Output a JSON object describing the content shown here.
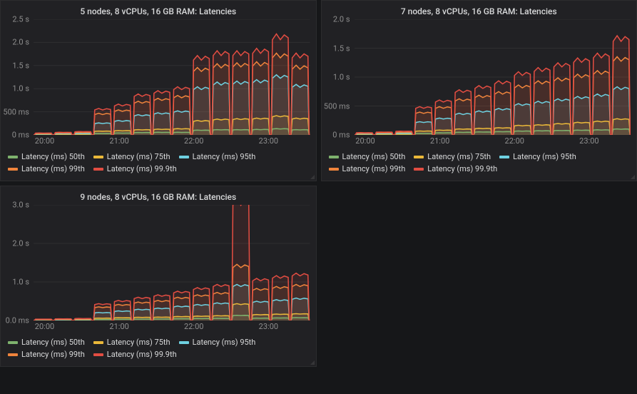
{
  "colors": {
    "bg": "#161719",
    "panel_bg": "#212124",
    "grid": "#2f2f31",
    "text": "#d8d9da",
    "muted": "#8e8e8e",
    "series": {
      "p50": "#7eb26d",
      "p75": "#eab839",
      "p95": "#6ed0e0",
      "p99": "#ef843c",
      "p999": "#e24d42"
    }
  },
  "legend_labels": {
    "p50": "Latency (ms) 50th",
    "p75": "Latency (ms) 75th",
    "p95": "Latency (ms) 95th",
    "p99": "Latency (ms) 99th",
    "p999": "Latency (ms) 99.9th"
  },
  "fonts": {
    "title_pt": 12,
    "axis_pt": 11,
    "legend_pt": 11
  },
  "x_axis": {
    "tick_labels": [
      "20:00",
      "21:00",
      "22:00",
      "23:00"
    ],
    "tick_positions_pct": [
      4,
      31,
      58,
      85
    ]
  },
  "panels": [
    {
      "title": "5 nodes, 8 vCPUs, 16 GB RAM: Latencies",
      "ylim": [
        0,
        2500
      ],
      "yticks": [
        {
          "v": 0,
          "label": "0 ms"
        },
        {
          "v": 500,
          "label": "500 ms"
        },
        {
          "v": 1000,
          "label": "1.0 s"
        },
        {
          "v": 1500,
          "label": "1.5 s"
        },
        {
          "v": 2000,
          "label": "2.0 s"
        },
        {
          "v": 2500,
          "label": "2.5 s"
        }
      ],
      "groups": [
        {
          "p50": 5,
          "p75": 10,
          "p95": 20,
          "p99": 30,
          "p999": 40
        },
        {
          "p50": 6,
          "p75": 12,
          "p95": 25,
          "p99": 40,
          "p999": 55
        },
        {
          "p50": 8,
          "p75": 15,
          "p95": 30,
          "p99": 50,
          "p999": 70
        },
        {
          "p50": 30,
          "p75": 80,
          "p95": 250,
          "p99": 450,
          "p999": 550
        },
        {
          "p50": 40,
          "p75": 90,
          "p95": 300,
          "p99": 520,
          "p999": 640
        },
        {
          "p50": 50,
          "p75": 110,
          "p95": 420,
          "p99": 700,
          "p999": 850
        },
        {
          "p50": 55,
          "p75": 120,
          "p95": 460,
          "p99": 760,
          "p999": 920
        },
        {
          "p50": 55,
          "p75": 130,
          "p95": 500,
          "p99": 820,
          "p999": 1000
        },
        {
          "p50": 100,
          "p75": 300,
          "p95": 1000,
          "p99": 1400,
          "p999": 1650
        },
        {
          "p50": 110,
          "p75": 330,
          "p95": 1100,
          "p99": 1480,
          "p999": 1750
        },
        {
          "p50": 110,
          "p75": 340,
          "p95": 1120,
          "p99": 1500,
          "p999": 1750
        },
        {
          "p50": 115,
          "p75": 350,
          "p95": 1150,
          "p99": 1520,
          "p999": 1800
        },
        {
          "p50": 130,
          "p75": 400,
          "p95": 1250,
          "p99": 1700,
          "p999": 2100
        },
        {
          "p50": 110,
          "p75": 350,
          "p95": 1050,
          "p99": 1450,
          "p999": 1700
        }
      ]
    },
    {
      "title": "7 nodes, 8 vCPUs, 16 GB RAM: Latencies",
      "ylim": [
        0,
        2000
      ],
      "yticks": [
        {
          "v": 0,
          "label": "0 ms"
        },
        {
          "v": 500,
          "label": "500 ms"
        },
        {
          "v": 1000,
          "label": "1.0 s"
        },
        {
          "v": 1500,
          "label": "1.5 s"
        },
        {
          "v": 2000,
          "label": "2.0 s"
        }
      ],
      "groups": [
        {
          "p50": 5,
          "p75": 10,
          "p95": 18,
          "p99": 28,
          "p999": 38
        },
        {
          "p50": 6,
          "p75": 12,
          "p95": 22,
          "p99": 35,
          "p999": 48
        },
        {
          "p50": 8,
          "p75": 14,
          "p95": 28,
          "p99": 45,
          "p999": 62
        },
        {
          "p50": 25,
          "p75": 65,
          "p95": 220,
          "p99": 380,
          "p999": 470
        },
        {
          "p50": 35,
          "p75": 80,
          "p95": 280,
          "p99": 470,
          "p999": 580
        },
        {
          "p50": 45,
          "p75": 100,
          "p95": 360,
          "p99": 600,
          "p999": 750
        },
        {
          "p50": 50,
          "p75": 110,
          "p95": 400,
          "p99": 660,
          "p999": 820
        },
        {
          "p50": 55,
          "p75": 120,
          "p95": 440,
          "p99": 720,
          "p999": 900
        },
        {
          "p50": 65,
          "p75": 160,
          "p95": 520,
          "p99": 830,
          "p999": 1050
        },
        {
          "p50": 70,
          "p75": 170,
          "p95": 560,
          "p99": 900,
          "p999": 1120
        },
        {
          "p50": 75,
          "p75": 190,
          "p95": 600,
          "p99": 950,
          "p999": 1200
        },
        {
          "p50": 80,
          "p75": 210,
          "p95": 640,
          "p99": 1010,
          "p999": 1280
        },
        {
          "p50": 85,
          "p75": 230,
          "p95": 680,
          "p99": 1070,
          "p999": 1360
        },
        {
          "p50": 100,
          "p75": 270,
          "p95": 800,
          "p99": 1300,
          "p999": 1650
        }
      ]
    },
    {
      "title": "9 nodes, 8 vCPUs, 16 GB RAM: Latencies",
      "ylim": [
        0,
        3000
      ],
      "yticks": [
        {
          "v": 0,
          "label": "0.0 ms"
        },
        {
          "v": 1000,
          "label": "1.0 s"
        },
        {
          "v": 2000,
          "label": "2.0 s"
        },
        {
          "v": 3000,
          "label": "3.0 s"
        }
      ],
      "groups": [
        {
          "p50": 5,
          "p75": 10,
          "p95": 18,
          "p99": 25,
          "p999": 35
        },
        {
          "p50": 6,
          "p75": 11,
          "p95": 20,
          "p99": 30,
          "p999": 42
        },
        {
          "p50": 7,
          "p75": 13,
          "p95": 24,
          "p99": 36,
          "p999": 50
        },
        {
          "p50": 25,
          "p75": 60,
          "p95": 200,
          "p99": 340,
          "p999": 420
        },
        {
          "p50": 30,
          "p75": 70,
          "p95": 240,
          "p99": 400,
          "p999": 500
        },
        {
          "p50": 35,
          "p75": 80,
          "p95": 280,
          "p99": 460,
          "p999": 580
        },
        {
          "p50": 38,
          "p75": 85,
          "p95": 310,
          "p99": 500,
          "p999": 640
        },
        {
          "p50": 45,
          "p75": 100,
          "p95": 360,
          "p99": 580,
          "p999": 730
        },
        {
          "p50": 50,
          "p75": 110,
          "p95": 400,
          "p99": 640,
          "p999": 820
        },
        {
          "p50": 55,
          "p75": 120,
          "p95": 440,
          "p99": 700,
          "p999": 900
        },
        {
          "p50": 130,
          "p75": 420,
          "p95": 900,
          "p99": 1400,
          "p999": 3050
        },
        {
          "p50": 60,
          "p75": 150,
          "p95": 480,
          "p99": 800,
          "p999": 1050
        },
        {
          "p50": 65,
          "p75": 160,
          "p95": 520,
          "p99": 850,
          "p999": 1120
        },
        {
          "p50": 70,
          "p75": 170,
          "p95": 560,
          "p99": 900,
          "p999": 1180
        }
      ]
    }
  ]
}
